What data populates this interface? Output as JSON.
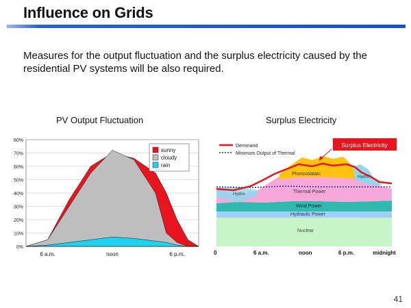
{
  "slide": {
    "title": "Influence on Grids",
    "body": "Measures for the output fluctuation and the surplus electricity caused by the residential PV systems will be also required.",
    "page_number": "41"
  },
  "chart_data": [
    {
      "type": "area",
      "title": "PV Output Fluctuation",
      "x_ticks": [
        "6 a.m.",
        "noon",
        "6 p.m."
      ],
      "y_ticks": [
        "0%",
        "10%",
        "20%",
        "30%",
        "40%",
        "50%",
        "60%",
        "70%",
        "80%"
      ],
      "ylim": [
        0,
        80
      ],
      "grid": true,
      "legend_position": "top-right",
      "series": [
        {
          "name": "sunny",
          "color": "#e8141e",
          "x": [
            4,
            6,
            8,
            10,
            12,
            14,
            16,
            17,
            18,
            19,
            20
          ],
          "y": [
            0,
            5,
            35,
            60,
            70,
            66,
            55,
            40,
            20,
            5,
            0
          ]
        },
        {
          "name": "cloudy",
          "color": "#bebebe",
          "x": [
            4,
            6,
            8,
            10,
            12,
            14,
            16,
            17,
            18,
            19,
            20
          ],
          "y": [
            0,
            5,
            30,
            55,
            72,
            65,
            40,
            10,
            3,
            0,
            0
          ]
        },
        {
          "name": "rain",
          "color": "#1fd1ea",
          "x": [
            4,
            6,
            8,
            10,
            12,
            14,
            16,
            17,
            18,
            19,
            20
          ],
          "y": [
            0,
            1,
            3,
            5,
            7,
            6,
            4,
            3,
            1,
            0,
            0
          ]
        }
      ]
    },
    {
      "type": "area",
      "title": "Surplus Electricity",
      "x_ticks": [
        "0",
        "6 a.m.",
        "noon",
        "6 p.m.",
        "midnight"
      ],
      "legend": [
        "Demmand",
        "Minimum Output of Thermal"
      ],
      "callout": "Surplus Electricity",
      "layers": [
        "Nuclear",
        "Hydraulic Power",
        "Wind Power",
        "Thermal Power",
        "Photovolataic",
        "Hydro",
        "Hydro"
      ],
      "colors": {
        "nuclear": "#c8f5c8",
        "hydraulic": "#9fd0ff",
        "wind": "#31b8b0",
        "thermal": "#f7a8d8",
        "pv": "#ffc20e",
        "hydro": "#8fd8f0",
        "demand": "#e4161e",
        "callout_bg": "#e4161e"
      }
    }
  ]
}
